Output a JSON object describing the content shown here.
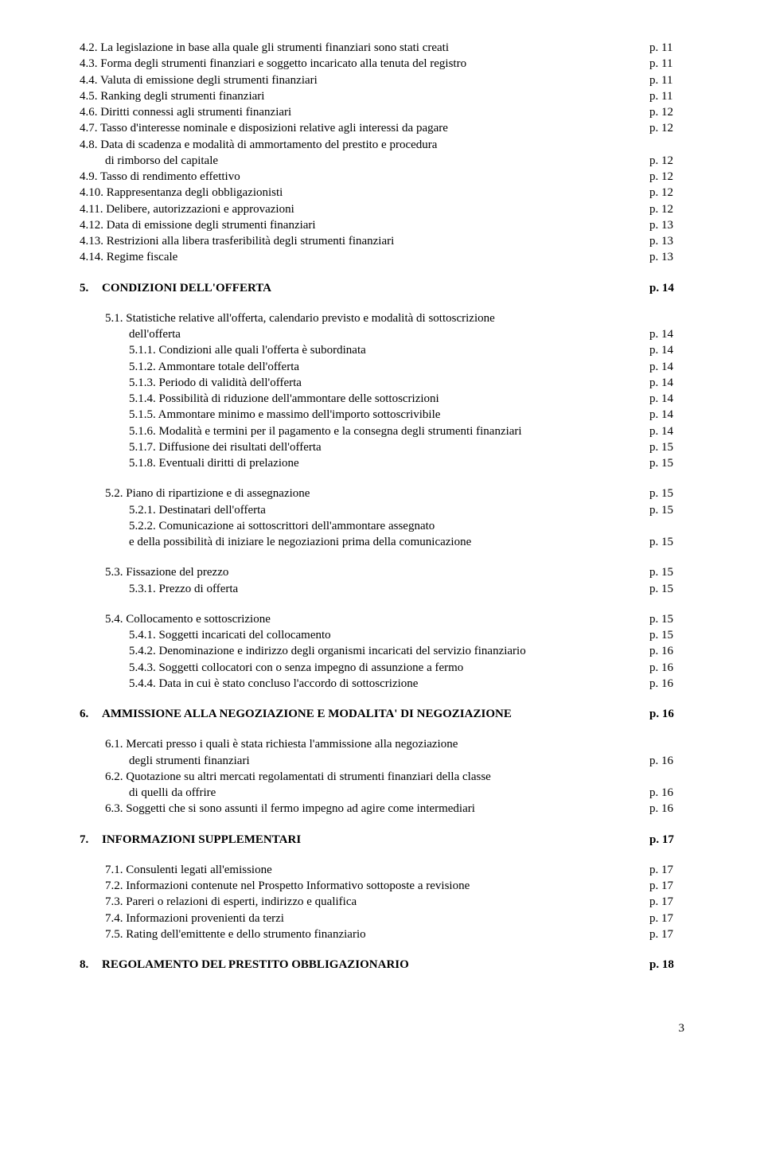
{
  "items": [
    {
      "class": "row first-level",
      "label": "4.2. La legislazione in base alla quale gli strumenti finanziari sono stati creati",
      "page": "p. 11"
    },
    {
      "class": "row first-level",
      "label": "4.3. Forma degli strumenti finanziari e soggetto incaricato alla tenuta del registro",
      "page": "p. 11"
    },
    {
      "class": "row first-level",
      "label": "4.4. Valuta di emissione degli strumenti finanziari",
      "page": "p. 11"
    },
    {
      "class": "row first-level",
      "label": "4.5. Ranking degli strumenti finanziari",
      "page": "p. 11"
    },
    {
      "class": "row first-level",
      "label": "4.6. Diritti connessi agli strumenti finanziari",
      "page": "p. 12"
    },
    {
      "class": "row first-level",
      "label": "4.7. Tasso d'interesse nominale e disposizioni relative agli interessi da pagare",
      "page": "p. 12"
    },
    {
      "class": "row first-level",
      "label": "4.8.  Data di scadenza e modalità di ammortamento del prestito e procedura",
      "page": ""
    },
    {
      "class": "row second-level",
      "label": " di rimborso del capitale",
      "page": "p. 12"
    },
    {
      "class": "row first-level",
      "label": "4.9.  Tasso di rendimento effettivo",
      "page": "p. 12"
    },
    {
      "class": "row first-level",
      "label": "4.10. Rappresentanza degli obbligazionisti",
      "page": "p. 12"
    },
    {
      "class": "row first-level",
      "label": "4.11. Delibere, autorizzazioni e approvazioni",
      "page": "p. 12"
    },
    {
      "class": "row first-level",
      "label": "4.12. Data di emissione degli strumenti finanziari",
      "page": "p. 13"
    },
    {
      "class": "row first-level",
      "label": "4.13. Restrizioni alla libera trasferibilità degli strumenti finanziari",
      "page": "p. 13"
    },
    {
      "class": "row first-level",
      "label": "4.14. Regime fiscale",
      "page": "p. 13"
    },
    {
      "class": "row section-row",
      "number": "5.",
      "label": "CONDIZIONI DELL'OFFERTA",
      "page": "p. 14"
    },
    {
      "class": "row second-level",
      "label": "5.1. Statistiche relative all'offerta, calendario previsto e modalità di sottoscrizione",
      "page": ""
    },
    {
      "class": "row third-level",
      "label": "dell'offerta",
      "page": "p. 14"
    },
    {
      "class": "row third-level",
      "label": "5.1.1. Condizioni alle quali l'offerta è subordinata",
      "page": "p. 14"
    },
    {
      "class": "row third-level",
      "label": "5.1.2. Ammontare totale dell'offerta",
      "page": "p. 14"
    },
    {
      "class": "row third-level",
      "label": "5.1.3. Periodo di validità dell'offerta",
      "page": "p. 14"
    },
    {
      "class": "row third-level",
      "label": "5.1.4. Possibilità di riduzione dell'ammontare delle sottoscrizioni",
      "page": "p. 14"
    },
    {
      "class": "row third-level",
      "label": "5.1.5. Ammontare minimo e massimo dell'importo sottoscrivibile",
      "page": "p. 14"
    },
    {
      "class": "row third-level",
      "label": "5.1.6. Modalità e termini per il pagamento e la consegna degli strumenti finanziari",
      "page": "p. 14"
    },
    {
      "class": "row third-level",
      "label": "5.1.7. Diffusione dei risultati dell'offerta",
      "page": "p. 15"
    },
    {
      "class": "row third-level",
      "label": "5.1.8. Eventuali diritti di prelazione",
      "page": "p. 15"
    },
    {
      "class": "spacer"
    },
    {
      "class": "row second-level",
      "label": "5.2. Piano di ripartizione e di assegnazione",
      "page": "p. 15"
    },
    {
      "class": "row third-level",
      "label": "5.2.1. Destinatari dell'offerta",
      "page": "p. 15"
    },
    {
      "class": "row third-level",
      "label": "5.2.2. Comunicazione ai sottoscrittori dell'ammontare assegnato",
      "page": ""
    },
    {
      "class": "row continuation",
      "label": "          e della possibilità di iniziare le negoziazioni prima della comunicazione",
      "page": "p. 15"
    },
    {
      "class": "spacer"
    },
    {
      "class": "row second-level",
      "label": "5.3.  Fissazione del prezzo",
      "page": "p. 15"
    },
    {
      "class": "row third-level",
      "label": "5.3.1. Prezzo di offerta",
      "page": "p. 15"
    },
    {
      "class": "spacer"
    },
    {
      "class": "row second-level",
      "label": "5.4.  Collocamento e sottoscrizione",
      "page": "p. 15"
    },
    {
      "class": "row third-level",
      "label": "5.4.1. Soggetti incaricati del collocamento",
      "page": "p. 15"
    },
    {
      "class": "row third-level",
      "label": "5.4.2. Denominazione e indirizzo degli organismi incaricati del servizio finanziario",
      "page": "p. 16"
    },
    {
      "class": "row third-level",
      "label": "5.4.3. Soggetti collocatori con o senza impegno di assunzione a fermo",
      "page": "p. 16"
    },
    {
      "class": "row third-level",
      "label": "5.4.4. Data in cui è stato concluso l'accordo di sottoscrizione",
      "page": "p. 16"
    },
    {
      "class": "row section-row",
      "number": "6.",
      "label": "AMMISSIONE ALLA NEGOZIAZIONE E MODALITA' DI NEGOZIAZIONE",
      "page": "p. 16"
    },
    {
      "class": "row second-level",
      "label": "6.1. Mercati presso i quali è stata richiesta l'ammissione alla negoziazione",
      "page": ""
    },
    {
      "class": "row third-level",
      "label": "degli strumenti finanziari",
      "page": "p. 16"
    },
    {
      "class": "row second-level",
      "label": "6.2.  Quotazione su altri mercati regolamentati di strumenti finanziari della classe",
      "page": ""
    },
    {
      "class": "row third-level",
      "label": " di quelli da offrire",
      "page": "p. 16"
    },
    {
      "class": "row second-level",
      "label": "6.3.  Soggetti che si sono assunti il fermo impegno ad agire come intermediari",
      "page": "p. 16"
    },
    {
      "class": "row section-row",
      "number": "7.",
      "label": "INFORMAZIONI SUPPLEMENTARI",
      "page": "p. 17"
    },
    {
      "class": "row second-level",
      "label": "7.1. Consulenti legati all'emissione",
      "page": "p. 17"
    },
    {
      "class": "row second-level",
      "label": "7.2. Informazioni contenute nel Prospetto Informativo sottoposte a revisione",
      "page": "p. 17"
    },
    {
      "class": "row second-level",
      "label": "7.3. Pareri o relazioni di esperti, indirizzo e qualifica",
      "page": "p. 17"
    },
    {
      "class": "row second-level",
      "label": "7.4. Informazioni provenienti da terzi",
      "page": "p. 17"
    },
    {
      "class": "row second-level",
      "label": "7.5. Rating dell'emittente e dello strumento finanziario",
      "page": "p. 17"
    },
    {
      "class": "row section-row",
      "number": "8.",
      "label": "REGOLAMENTO DEL PRESTITO OBBLIGAZIONARIO",
      "page": "p. 18"
    }
  ],
  "page_number": "3"
}
